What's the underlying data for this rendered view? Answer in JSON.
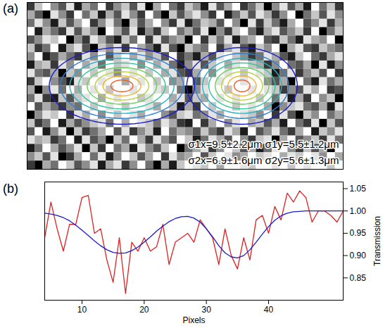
{
  "chart_data": [
    {
      "type": "heatmap",
      "panel_label": "(a)",
      "tick_labels": false,
      "color_range": [
        0,
        9
      ],
      "cells": [
        [
          2,
          7,
          9,
          5,
          3,
          8,
          1,
          6,
          4,
          9,
          2,
          5,
          7,
          3,
          8,
          0,
          6,
          9,
          4,
          2,
          7,
          5,
          1,
          8,
          3,
          6,
          9,
          2,
          4,
          7,
          0,
          5,
          8,
          3,
          6,
          1,
          9,
          4,
          7,
          2
        ],
        [
          6,
          3,
          0,
          8,
          5,
          2,
          9,
          4,
          7,
          1,
          6,
          3,
          8,
          5,
          2,
          9,
          4,
          0,
          7,
          3,
          6,
          8,
          5,
          2,
          9,
          1,
          4,
          7,
          3,
          8,
          6,
          2,
          5,
          9,
          0,
          4,
          7,
          3,
          8,
          5
        ],
        [
          4,
          8,
          5,
          1,
          7,
          3,
          6,
          9,
          2,
          5,
          8,
          4,
          0,
          7,
          3,
          6,
          9,
          5,
          2,
          8,
          1,
          4,
          7,
          6,
          3,
          9,
          5,
          0,
          8,
          2,
          7,
          4,
          1,
          6,
          9,
          3,
          5,
          8,
          2,
          6
        ],
        [
          9,
          1,
          6,
          4,
          2,
          8,
          3,
          7,
          5,
          0,
          9,
          6,
          3,
          8,
          1,
          5,
          2,
          7,
          9,
          4,
          6,
          3,
          8,
          0,
          5,
          2,
          7,
          9,
          4,
          1,
          6,
          8,
          3,
          5,
          7,
          2,
          9,
          0,
          4,
          7
        ],
        [
          3,
          5,
          8,
          7,
          9,
          0,
          5,
          2,
          8,
          6,
          3,
          1,
          7,
          4,
          9,
          2,
          8,
          3,
          5,
          6,
          0,
          9,
          2,
          7,
          4,
          8,
          1,
          5,
          6,
          9,
          3,
          2,
          7,
          4,
          1,
          8,
          6,
          5,
          9,
          0
        ],
        [
          7,
          2,
          4,
          9,
          1,
          6,
          8,
          3,
          0,
          7,
          5,
          8,
          2,
          9,
          6,
          4,
          1,
          8,
          3,
          0,
          7,
          5,
          4,
          9,
          2,
          6,
          8,
          3,
          1,
          7,
          5,
          9,
          0,
          6,
          8,
          3,
          2,
          7,
          5,
          4
        ],
        [
          5,
          9,
          1,
          3,
          6,
          4,
          2,
          8,
          5,
          9,
          3,
          7,
          9,
          6,
          8,
          5,
          7,
          3,
          9,
          2,
          4,
          1,
          6,
          3,
          8,
          9,
          7,
          5,
          2,
          4,
          8,
          6,
          3,
          1,
          7,
          9,
          4,
          2,
          6,
          8
        ],
        [
          1,
          6,
          7,
          2,
          8,
          5,
          9,
          6,
          8,
          4,
          9,
          7,
          8,
          9,
          5,
          9,
          6,
          8,
          4,
          1,
          5,
          8,
          3,
          7,
          9,
          6,
          8,
          9,
          7,
          6,
          2,
          5,
          9,
          4,
          3,
          6,
          0,
          8,
          1,
          5
        ],
        [
          8,
          4,
          3,
          6,
          0,
          7,
          5,
          9,
          7,
          9,
          8,
          5,
          9,
          8,
          9,
          7,
          9,
          6,
          8,
          3,
          2,
          6,
          9,
          5,
          9,
          8,
          9,
          7,
          9,
          8,
          7,
          1,
          4,
          8,
          2,
          5,
          7,
          3,
          9,
          2
        ],
        [
          2,
          7,
          9,
          5,
          3,
          1,
          8,
          7,
          9,
          8,
          9,
          9,
          6,
          9,
          8,
          9,
          7,
          9,
          5,
          6,
          9,
          3,
          7,
          9,
          8,
          9,
          9,
          8,
          9,
          9,
          5,
          3,
          6,
          0,
          9,
          4,
          1,
          8,
          4,
          6
        ],
        [
          6,
          0,
          5,
          8,
          4,
          9,
          6,
          9,
          8,
          9,
          7,
          9,
          9,
          8,
          9,
          9,
          8,
          7,
          9,
          4,
          0,
          5,
          8,
          9,
          9,
          7,
          9,
          9,
          8,
          9,
          8,
          7,
          2,
          5,
          3,
          8,
          6,
          9,
          2,
          3
        ],
        [
          4,
          8,
          2,
          1,
          7,
          3,
          7,
          8,
          9,
          6,
          9,
          8,
          9,
          9,
          7,
          8,
          9,
          9,
          6,
          8,
          3,
          7,
          6,
          9,
          8,
          9,
          8,
          9,
          9,
          7,
          9,
          4,
          8,
          1,
          6,
          2,
          9,
          5,
          7,
          0
        ],
        [
          9,
          3,
          6,
          4,
          2,
          5,
          4,
          9,
          7,
          9,
          8,
          9,
          7,
          9,
          9,
          8,
          6,
          9,
          7,
          1,
          6,
          2,
          9,
          7,
          9,
          9,
          7,
          9,
          8,
          9,
          6,
          0,
          5,
          7,
          8,
          4,
          3,
          6,
          1,
          8
        ],
        [
          0,
          5,
          8,
          7,
          9,
          2,
          8,
          6,
          9,
          5,
          9,
          7,
          9,
          8,
          6,
          9,
          9,
          5,
          3,
          7,
          8,
          4,
          5,
          8,
          6,
          9,
          9,
          8,
          7,
          5,
          9,
          2,
          8,
          3,
          0,
          7,
          5,
          9,
          4,
          6
        ],
        [
          7,
          2,
          4,
          9,
          1,
          6,
          3,
          5,
          7,
          8,
          4,
          9,
          6,
          9,
          8,
          7,
          4,
          8,
          6,
          2,
          1,
          9,
          2,
          6,
          9,
          5,
          8,
          9,
          6,
          7,
          3,
          6,
          1,
          9,
          4,
          2,
          8,
          0,
          7,
          3
        ],
        [
          3,
          9,
          1,
          5,
          8,
          0,
          7,
          2,
          4,
          6,
          9,
          3,
          8,
          2,
          5,
          7,
          1,
          9,
          4,
          6,
          5,
          3,
          7,
          4,
          2,
          8,
          6,
          1,
          9,
          3,
          5,
          8,
          4,
          2,
          6,
          9,
          1,
          7,
          5,
          8
        ],
        [
          8,
          6,
          7,
          2,
          4,
          9,
          1,
          8,
          3,
          5,
          0,
          7,
          4,
          9,
          6,
          2,
          8,
          5,
          3,
          9,
          7,
          1,
          4,
          8,
          6,
          3,
          9,
          5,
          2,
          7,
          8,
          0,
          6,
          9,
          3,
          5,
          7,
          2,
          8,
          4
        ],
        [
          1,
          4,
          9,
          6,
          3,
          5,
          8,
          0,
          7,
          2,
          9,
          4,
          6,
          1,
          8,
          5,
          3,
          7,
          9,
          0,
          4,
          6,
          8,
          2,
          5,
          9,
          7,
          3,
          6,
          1,
          4,
          8,
          9,
          5,
          2,
          7,
          3,
          6,
          0,
          9
        ],
        [
          5,
          7,
          3,
          8,
          0,
          2,
          6,
          9,
          4,
          8,
          1,
          5,
          9,
          7,
          3,
          6,
          9,
          2,
          8,
          5,
          6,
          9,
          3,
          7,
          9,
          8,
          5,
          6,
          9,
          7,
          8,
          9,
          6,
          8,
          7,
          9,
          8,
          5,
          9,
          6
        ],
        [
          2,
          0,
          6,
          4,
          9,
          7,
          3,
          5,
          8,
          1,
          6,
          8,
          2,
          5,
          9,
          4,
          0,
          6,
          1,
          7,
          9,
          8,
          7,
          9,
          6,
          9,
          9,
          8,
          7,
          9,
          9,
          8,
          9,
          7,
          9,
          8,
          9,
          9,
          7,
          9
        ]
      ],
      "contours": {
        "colors": [
          "#1c1cc8",
          "#2e7fd6",
          "#27b3c4",
          "#2fc79a",
          "#66cf5e",
          "#b6d43a",
          "#f0b42a",
          "#e8602a"
        ],
        "blobs": [
          {
            "center": [
              12,
              10
            ],
            "rx": [
              9.2,
              7.8,
              6.6,
              5.5,
              4.4,
              3.4,
              2.4,
              1.4
            ],
            "ry": [
              4.6,
              3.9,
              3.3,
              2.75,
              2.2,
              1.7,
              1.2,
              0.7
            ]
          },
          {
            "center": [
              27.2,
              10
            ],
            "rx": [
              7.0,
              5.9,
              5.0,
              4.2,
              3.4,
              2.6,
              1.8,
              1.0
            ],
            "ry": [
              4.6,
              3.9,
              3.3,
              2.75,
              2.2,
              1.7,
              1.2,
              0.7
            ]
          }
        ]
      },
      "annotations": [
        "σ1x=9.5±2.2μm σ1y=5.5±1.2μm",
        "σ2x=6.9±1.6μm σ2y=5.6±1.3μm"
      ]
    },
    {
      "type": "line",
      "panel_label": "(b)",
      "xlabel": "Pixels",
      "ylabel": "Transmission",
      "grid": false,
      "xlim": [
        4,
        52
      ],
      "xticks": [
        10,
        20,
        30,
        40
      ],
      "ylim": [
        0.8,
        1.065
      ],
      "yticks": [
        0.85,
        {
          "value": 0.9,
          "label": "0.90"
        },
        0.95,
        {
          "value": 1.0,
          "label": "1.00"
        },
        1.05
      ],
      "x": [
        4,
        5,
        6,
        7,
        8,
        9,
        10,
        11,
        12,
        13,
        14,
        15,
        16,
        17,
        18,
        19,
        20,
        21,
        22,
        23,
        24,
        25,
        26,
        27,
        28,
        29,
        30,
        31,
        32,
        33,
        34,
        35,
        36,
        37,
        38,
        39,
        40,
        41,
        42,
        43,
        44,
        45,
        46,
        47,
        48,
        49,
        50,
        51,
        52
      ],
      "series": [
        {
          "color": "#e02020",
          "line_style": "solid",
          "values": [
            0.94,
            1.02,
            0.96,
            0.91,
            0.97,
            0.97,
            1.03,
            1.035,
            0.95,
            0.96,
            0.89,
            0.84,
            0.94,
            0.815,
            0.93,
            0.91,
            0.94,
            0.91,
            0.92,
            0.97,
            0.88,
            0.93,
            0.94,
            0.95,
            0.93,
            0.98,
            0.96,
            0.94,
            0.88,
            0.96,
            0.9,
            0.87,
            0.94,
            0.89,
            0.98,
            0.99,
            0.95,
            1.01,
            0.98,
            1.04,
            1.02,
            1.045,
            1.03,
            0.975,
            1.0,
            1.0,
            0.99,
            0.975,
            1.0
          ]
        },
        {
          "color": "#1a1ad0",
          "line_style": "solid",
          "values": [
            0.995,
            0.993,
            0.99,
            0.985,
            0.978,
            0.968,
            0.957,
            0.945,
            0.933,
            0.922,
            0.913,
            0.907,
            0.905,
            0.906,
            0.911,
            0.919,
            0.93,
            0.942,
            0.955,
            0.966,
            0.976,
            0.983,
            0.987,
            0.988,
            0.984,
            0.975,
            0.96,
            0.942,
            0.922,
            0.906,
            0.897,
            0.895,
            0.9,
            0.913,
            0.93,
            0.948,
            0.965,
            0.979,
            0.989,
            0.995,
            0.998,
            0.999,
            1.0,
            1.0,
            1.0,
            1.0,
            1.0,
            1.0,
            1.0
          ]
        }
      ]
    }
  ]
}
